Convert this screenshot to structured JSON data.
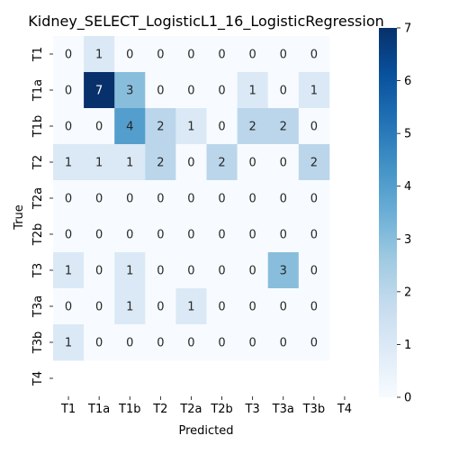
{
  "chart_data": {
    "type": "heatmap",
    "title": "Kidney_SELECT_LogisticL1_16_LogisticRegression",
    "xlabel": "Predicted",
    "ylabel": "True",
    "x_categories": [
      "T1",
      "T1a",
      "T1b",
      "T2",
      "T2a",
      "T2b",
      "T3",
      "T3a",
      "T3b",
      "T4"
    ],
    "y_categories": [
      "T1",
      "T1a",
      "T1b",
      "T2",
      "T2a",
      "T2b",
      "T3",
      "T3a",
      "T3b",
      "T4"
    ],
    "values": [
      [
        0,
        1,
        0,
        0,
        0,
        0,
        0,
        0,
        0,
        null
      ],
      [
        0,
        7,
        3,
        0,
        0,
        0,
        1,
        0,
        1,
        null
      ],
      [
        0,
        0,
        4,
        2,
        1,
        0,
        2,
        2,
        0,
        null
      ],
      [
        1,
        1,
        1,
        2,
        0,
        2,
        0,
        0,
        2,
        null
      ],
      [
        0,
        0,
        0,
        0,
        0,
        0,
        0,
        0,
        0,
        null
      ],
      [
        0,
        0,
        0,
        0,
        0,
        0,
        0,
        0,
        0,
        null
      ],
      [
        1,
        0,
        1,
        0,
        0,
        0,
        0,
        3,
        0,
        null
      ],
      [
        0,
        0,
        1,
        0,
        1,
        0,
        0,
        0,
        0,
        null
      ],
      [
        1,
        0,
        0,
        0,
        0,
        0,
        0,
        0,
        0,
        null
      ],
      [
        null,
        null,
        null,
        null,
        null,
        null,
        null,
        null,
        null,
        null
      ]
    ],
    "colorbar": {
      "min": 0,
      "max": 7,
      "ticks": [
        0,
        1,
        2,
        3,
        4,
        5,
        6,
        7
      ],
      "colormap": "Blues"
    }
  }
}
